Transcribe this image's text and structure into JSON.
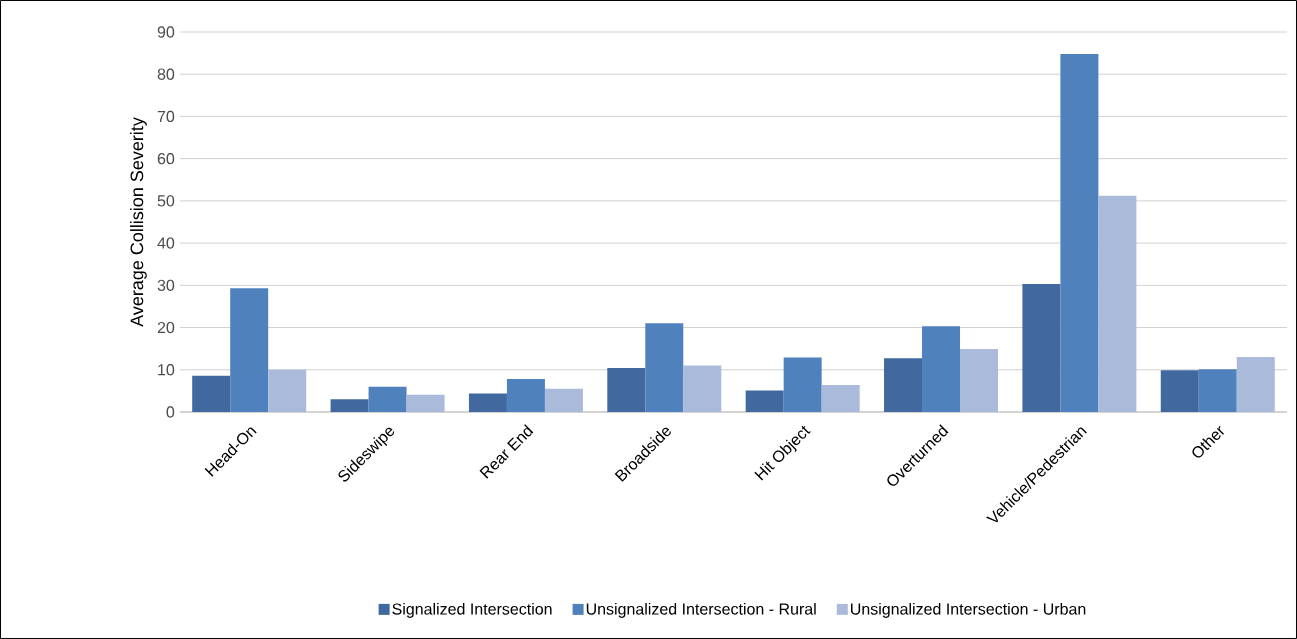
{
  "chart_data": {
    "type": "bar",
    "ylabel": "Average Collision Severity",
    "categories": [
      "Head-On",
      "Sideswipe",
      "Rear End",
      "Broadside",
      "Hit Object",
      "Overturned",
      "Vehicle/Pedestrian",
      "Other"
    ],
    "series": [
      {
        "name": "Signalized Intersection",
        "color": "#41699f",
        "values": [
          8.6,
          3.0,
          4.4,
          10.4,
          5.1,
          12.7,
          30.3,
          9.9
        ]
      },
      {
        "name": "Unsignalized Intersection - Rural",
        "color": "#4f81bd",
        "values": [
          29.3,
          6.0,
          7.8,
          21.0,
          12.9,
          20.3,
          84.8,
          10.1
        ]
      },
      {
        "name": "Unsignalized Intersection - Urban",
        "color": "#a9badb",
        "values": [
          10.0,
          4.1,
          5.5,
          11.0,
          6.4,
          14.9,
          51.2,
          13.0
        ]
      }
    ],
    "ylim": [
      0,
      90
    ],
    "yticks": [
      0,
      10,
      20,
      30,
      40,
      50,
      60,
      70,
      80,
      90
    ],
    "grid": "y",
    "legend": "bottom"
  }
}
